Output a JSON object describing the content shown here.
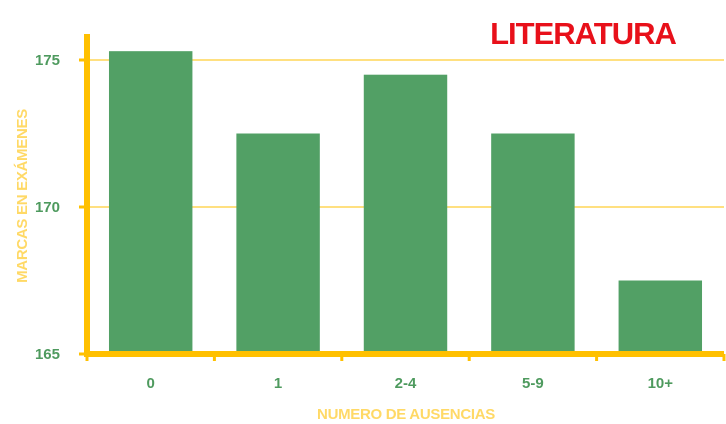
{
  "chart_data": {
    "type": "bar",
    "title": "LITERATURA",
    "xlabel": "NUMERO DE AUSENCIAS",
    "ylabel": "MARCAS EN EXÁMENES",
    "categories": [
      "0",
      "1",
      "2-4",
      "5-9",
      "10+"
    ],
    "values": [
      175.3,
      172.5,
      174.5,
      172.5,
      167.5
    ],
    "ylim": [
      165,
      176.5
    ],
    "yticks": [
      165,
      170,
      175
    ],
    "grid": true,
    "legend": "none"
  },
  "colors": {
    "bar": "#52a065",
    "axis": "#ffc000",
    "grid": "#ffc000",
    "tick_text": "#4e9a5e",
    "axis_title": "#ffd966",
    "title": "#e8101a"
  }
}
